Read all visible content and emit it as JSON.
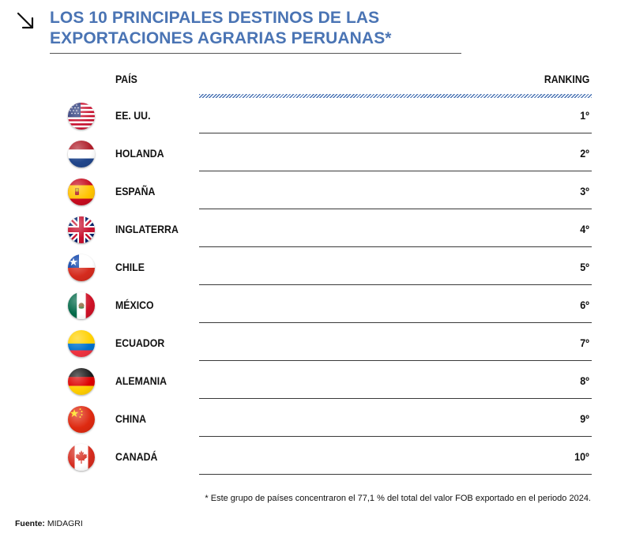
{
  "header": {
    "title": "LOS 10 PRINCIPALES DESTINOS DE LAS EXPORTACIONES AGRARIAS PERUANAS*",
    "arrow_icon": "arrow-down-right-icon"
  },
  "chart_data": {
    "type": "table",
    "title": "LOS 10 PRINCIPALES DESTINOS DE LAS EXPORTACIONES AGRARIAS PERUANAS*",
    "columns": [
      "PAÍS",
      "RANKING"
    ],
    "rows": [
      {
        "country": "EE. UU.",
        "rank": "1º",
        "flag_icon": "usa-flag-icon"
      },
      {
        "country": "HOLANDA",
        "rank": "2º",
        "flag_icon": "netherlands-flag-icon"
      },
      {
        "country": "ESPAÑA",
        "rank": "3º",
        "flag_icon": "spain-flag-icon"
      },
      {
        "country": "INGLATERRA",
        "rank": "4º",
        "flag_icon": "uk-flag-icon"
      },
      {
        "country": "CHILE",
        "rank": "5º",
        "flag_icon": "chile-flag-icon"
      },
      {
        "country": "MÉXICO",
        "rank": "6º",
        "flag_icon": "mexico-flag-icon"
      },
      {
        "country": "ECUADOR",
        "rank": "7º",
        "flag_icon": "ecuador-flag-icon"
      },
      {
        "country": "ALEMANIA",
        "rank": "8º",
        "flag_icon": "germany-flag-icon"
      },
      {
        "country": "CHINA",
        "rank": "9º",
        "flag_icon": "china-flag-icon"
      },
      {
        "country": "CANADÁ",
        "rank": "10º",
        "flag_icon": "canada-flag-icon"
      }
    ],
    "footnote": "* Este grupo de países concentraron el 77,1 % del total del valor FOB exportado en el periodo 2024.",
    "source_label": "Fuente:",
    "source": "MIDAGRI"
  },
  "colors": {
    "accent": "#4a74b4",
    "text": "#111111",
    "rule": "#3a3a3a"
  }
}
